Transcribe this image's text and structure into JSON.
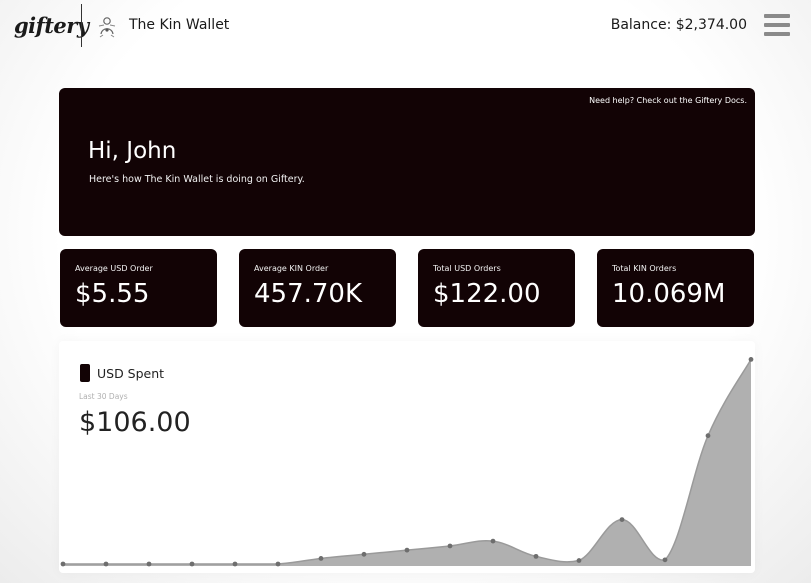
{
  "header": {
    "logo_text": "giftery",
    "wallet_name": "The Kin Wallet",
    "balance": "Balance: $2,374.00",
    "menu_icon": "hamburger-menu-icon",
    "wallet_icon": "kin-wallet-avatar-icon"
  },
  "hero": {
    "help_link": "Need help? Check out the Giftery Docs.",
    "greeting": "Hi, John",
    "subtext": "Here's how The Kin Wallet is doing on Giftery."
  },
  "stats": [
    {
      "label": "Average USD Order",
      "value": "$5.55"
    },
    {
      "label": "Average KIN Order",
      "value": "457.70K"
    },
    {
      "label": "Total USD Orders",
      "value": "$122.00"
    },
    {
      "label": "Total KIN Orders",
      "value": "10.069M"
    }
  ],
  "chart": {
    "series_name": "USD Spent",
    "period": "Last 30 Days",
    "total": "$106.00"
  },
  "colors": {
    "card_bg": "#120305",
    "area_fill": "#b0b0b0",
    "line": "#9a9a9a",
    "point": "#6e6e6e"
  },
  "chart_data": {
    "type": "area",
    "x": [
      1,
      2,
      3,
      4,
      5,
      6,
      7,
      8,
      9,
      10,
      11,
      12,
      13,
      14,
      15,
      16,
      17
    ],
    "series": [
      {
        "name": "USD Spent",
        "values": [
          0,
          0,
          0,
          0,
          0,
          0,
          0.8,
          1.4,
          2.0,
          2.6,
          3.3,
          1.1,
          0.5,
          6.4,
          0.6,
          18.5,
          29.5
        ]
      }
    ],
    "ylim": [
      0,
      31
    ],
    "grid": false,
    "legend": "top-left"
  }
}
